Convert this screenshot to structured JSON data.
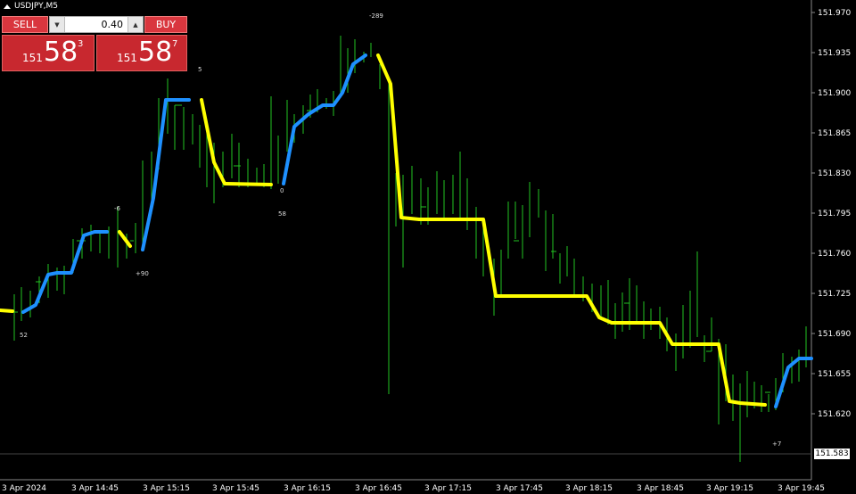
{
  "window": {
    "symbol_title": "USDJPY,M5"
  },
  "trade_panel": {
    "sell_label": "SELL",
    "buy_label": "BUY",
    "lot_value": "0.40",
    "sell_price": {
      "prefix": "151",
      "big": "58",
      "sup": "3"
    },
    "buy_price": {
      "prefix": "151",
      "big": "58",
      "sup": "7"
    }
  },
  "price_axis": {
    "ticks": [
      "151.970",
      "151.935",
      "151.900",
      "151.865",
      "151.830",
      "151.795",
      "151.760",
      "151.725",
      "151.690",
      "151.655",
      "151.620"
    ],
    "current_price": "151.583"
  },
  "time_axis": {
    "ticks": [
      "3 Apr 2024",
      "3 Apr 14:45",
      "3 Apr 15:15",
      "3 Apr 15:45",
      "3 Apr 16:15",
      "3 Apr 16:45",
      "3 Apr 17:15",
      "3 Apr 17:45",
      "3 Apr 18:15",
      "3 Apr 18:45",
      "3 Apr 19:15",
      "3 Apr 19:45"
    ]
  },
  "annotations": [
    "52",
    "-6",
    "+90",
    "5",
    "58",
    "-289",
    "0",
    "+7"
  ],
  "colors": {
    "bars": "#22c422",
    "uptrend": "#1e90ff",
    "downtrend": "#ffff00",
    "background": "#000000"
  }
}
